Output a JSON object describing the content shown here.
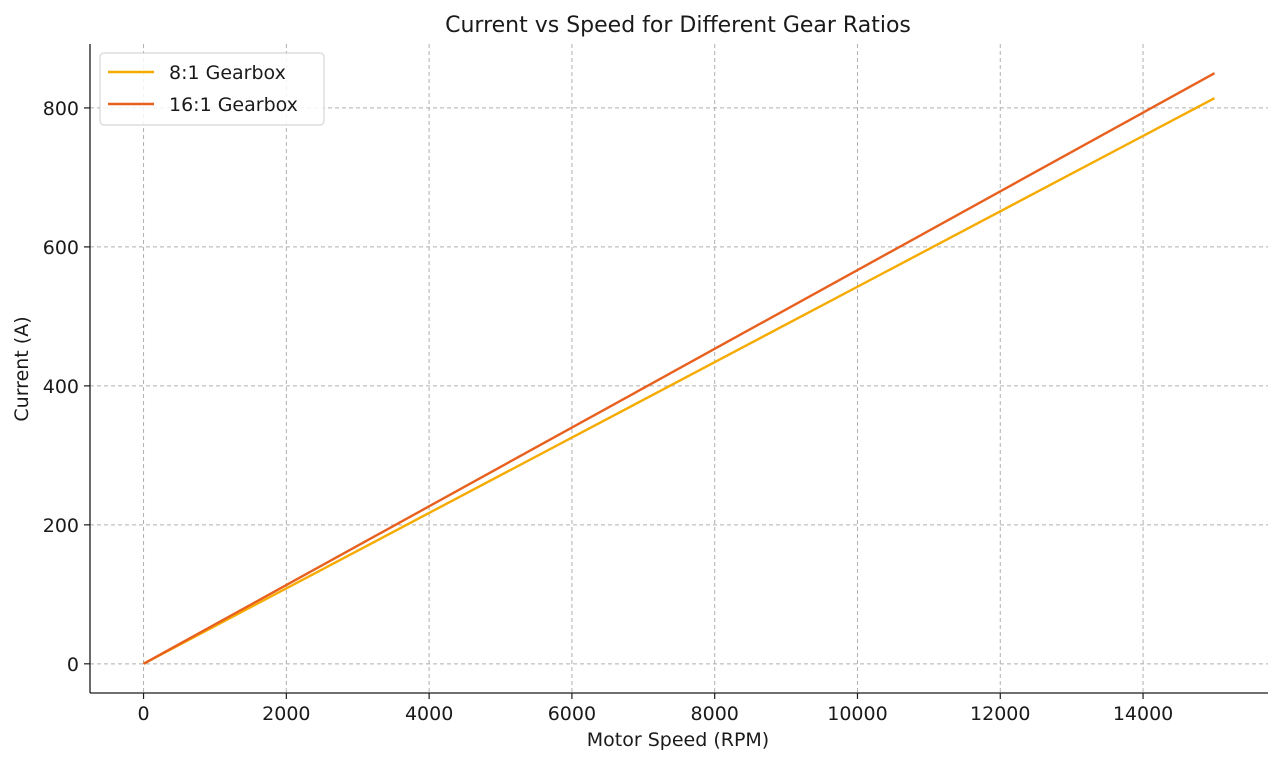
{
  "chart_data": {
    "type": "line",
    "title": "Current vs Speed for Different Gear Ratios",
    "xlabel": "Motor Speed (RPM)",
    "ylabel": "Current (A)",
    "xlim": [
      -750,
      15750
    ],
    "ylim": [
      -42,
      892
    ],
    "xticks": [
      0,
      2000,
      4000,
      6000,
      8000,
      10000,
      12000,
      14000
    ],
    "yticks": [
      0,
      200,
      400,
      600,
      800
    ],
    "grid": true,
    "legend_position": "top-left",
    "series": [
      {
        "name": "8:1 Gearbox",
        "color": "#f5ab00",
        "x": [
          0,
          15000
        ],
        "y": [
          0,
          814
        ]
      },
      {
        "name": "16:1 Gearbox",
        "color": "#e8601e",
        "x": [
          0,
          15000
        ],
        "y": [
          0,
          850
        ]
      }
    ]
  }
}
